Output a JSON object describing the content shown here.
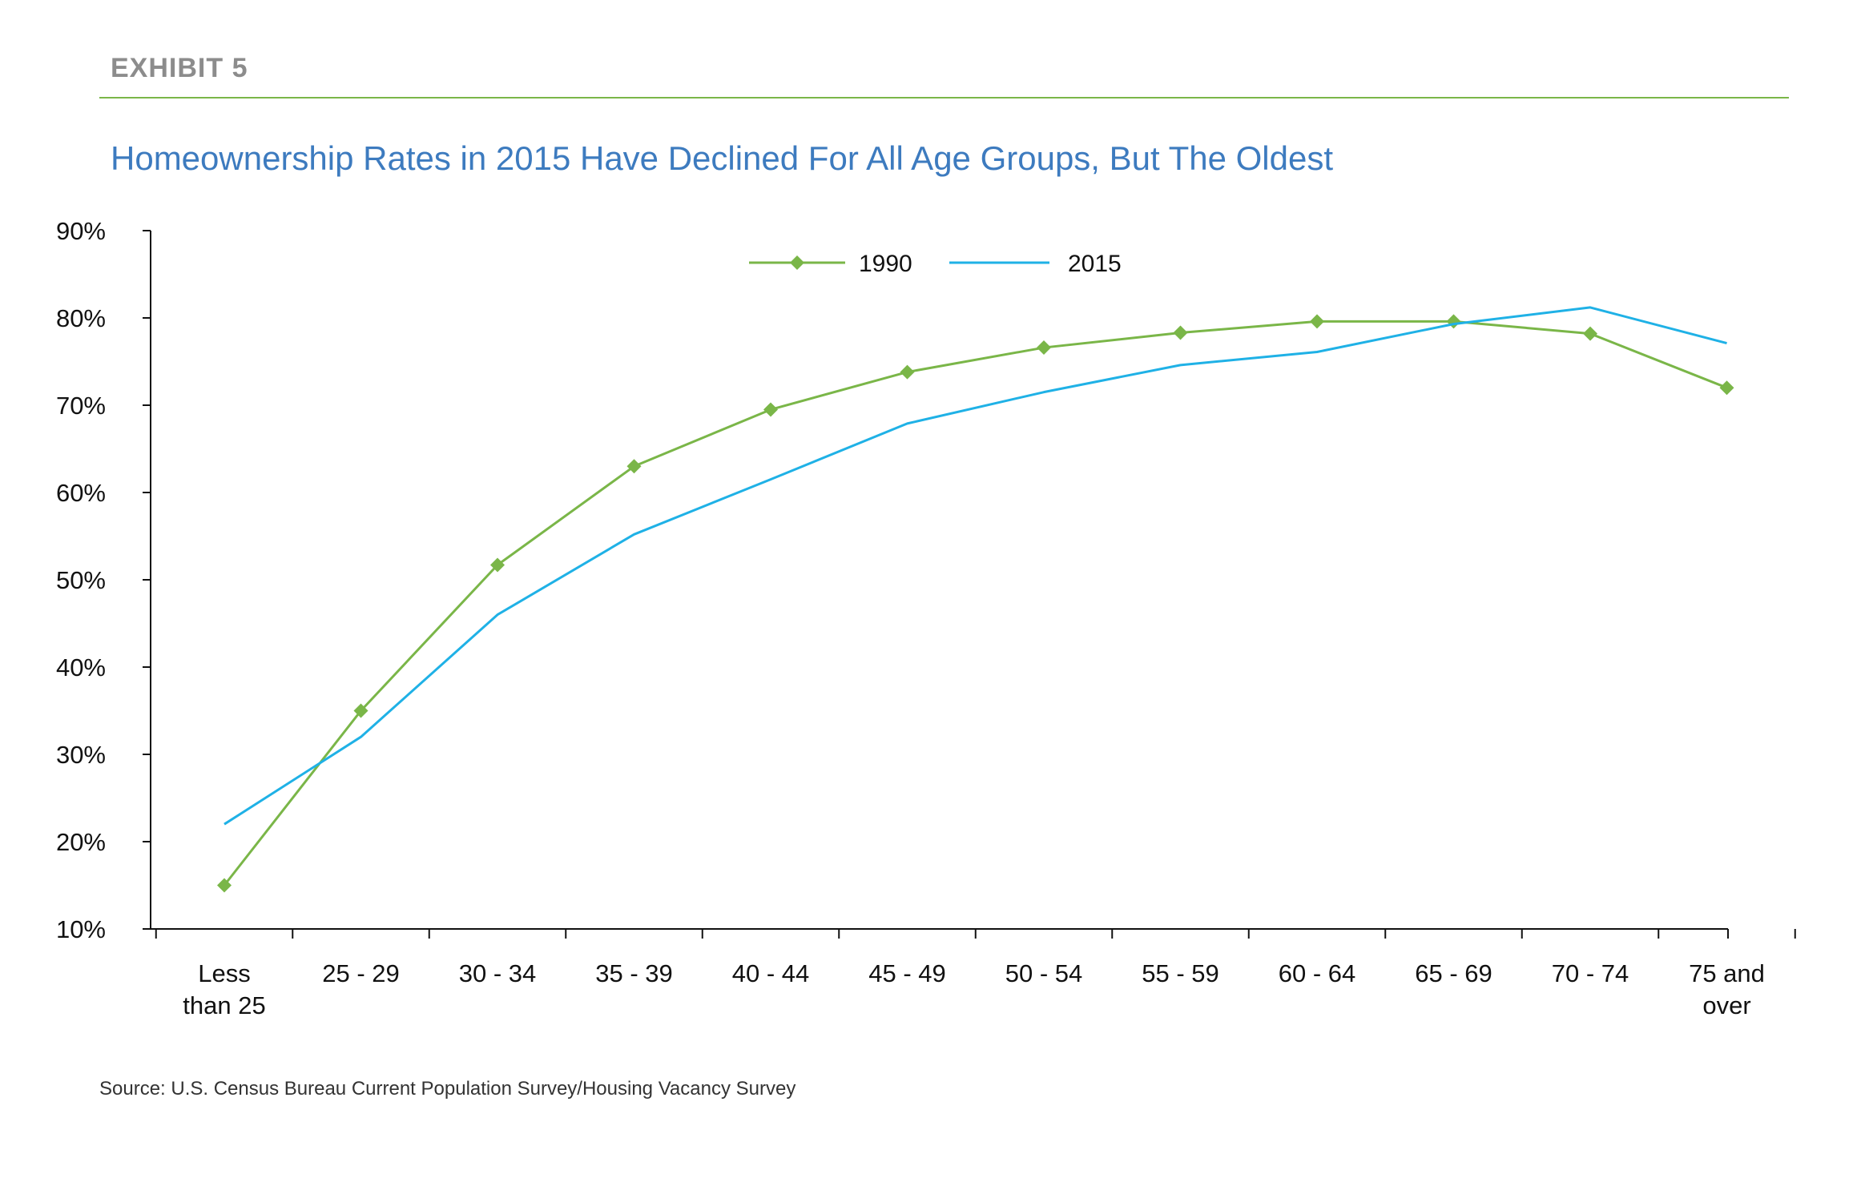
{
  "header": {
    "exhibit": "EXHIBIT 5",
    "title": "Homeownership Rates in 2015 Have Declined For All Age Groups, But The Oldest"
  },
  "footer": {
    "source": "Source: U.S. Census Bureau Current Population Survey/Housing Vacancy Survey"
  },
  "colors": {
    "series_1990": "#7ab648",
    "series_2015": "#1fb1e6",
    "axis": "#111111",
    "rule": "#7ab648",
    "title": "#3d7bbf"
  },
  "chart_data": {
    "type": "line",
    "title": "Homeownership Rates in 2015 Have Declined For All Age Groups, But The Oldest",
    "xlabel": "",
    "ylabel": "",
    "categories": [
      [
        "Less",
        "than 25"
      ],
      [
        "25 - 29"
      ],
      [
        "30 - 34"
      ],
      [
        "35 - 39"
      ],
      [
        "40 - 44"
      ],
      [
        "45 - 49"
      ],
      [
        "50 - 54"
      ],
      [
        "55 - 59"
      ],
      [
        "60 - 64"
      ],
      [
        "65 - 69"
      ],
      [
        "70 - 74"
      ],
      [
        "75 and",
        "over"
      ]
    ],
    "ylim": [
      10,
      90
    ],
    "yticks": [
      10,
      20,
      30,
      40,
      50,
      60,
      70,
      80,
      90
    ],
    "ytick_labels": [
      "10%",
      "20%",
      "30%",
      "40%",
      "50%",
      "60%",
      "70%",
      "80%",
      "90%"
    ],
    "grid": false,
    "legend": "top-center",
    "series": [
      {
        "name": "1990",
        "marker": "diamond",
        "values": [
          15.0,
          35.0,
          51.7,
          63.0,
          69.5,
          73.8,
          76.6,
          78.3,
          79.6,
          79.6,
          78.2,
          72.0
        ]
      },
      {
        "name": "2015",
        "marker": "none",
        "values": [
          22.0,
          32.0,
          46.0,
          55.2,
          61.5,
          67.9,
          71.5,
          74.6,
          76.1,
          79.3,
          81.2,
          77.1
        ]
      }
    ]
  }
}
